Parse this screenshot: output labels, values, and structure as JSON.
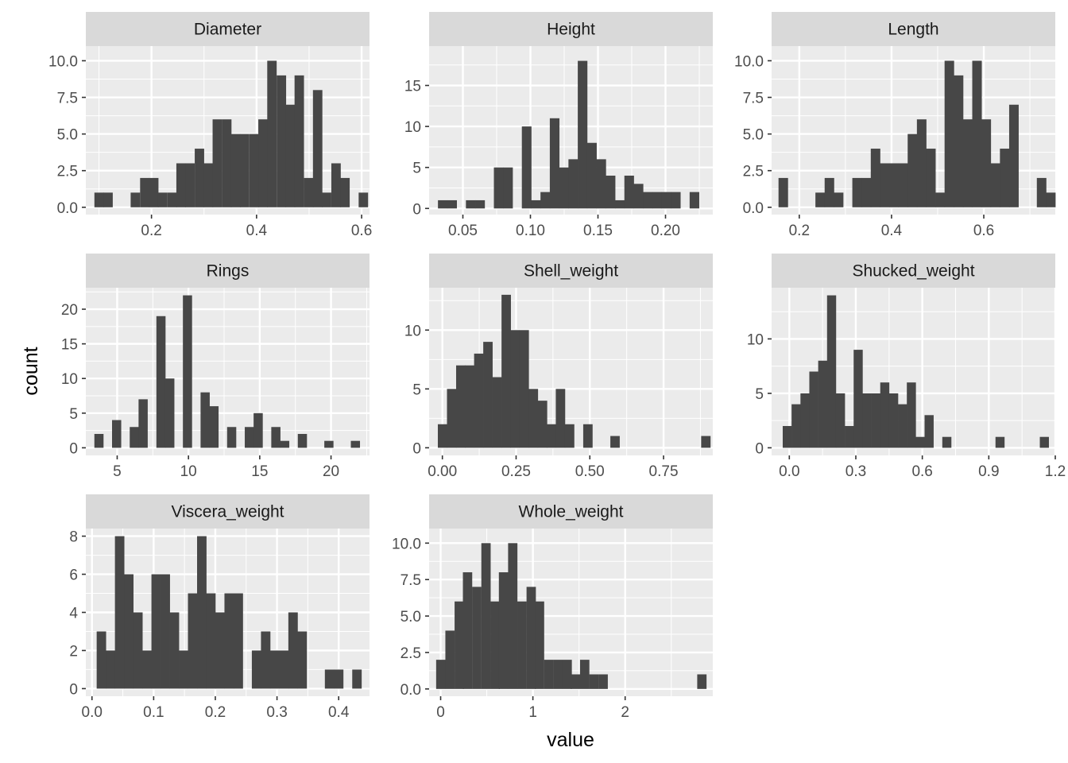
{
  "axes": {
    "x_title": "value",
    "y_title": "count"
  },
  "colors": {
    "panel_background": "#ebebeb",
    "grid_major": "#ffffff",
    "strip_background": "#d9d9d9",
    "bar_fill": "#474747",
    "tick_text": "#4d4d4d"
  },
  "chart_data": [
    {
      "type": "histogram",
      "title": "Diameter",
      "bins": 30,
      "bin_width": 0.01734,
      "xlim": [
        0.075,
        0.615
      ],
      "ylim": [
        -0.5,
        11.0
      ],
      "x_ticks": [
        0.2,
        0.4,
        0.6
      ],
      "x_tick_labels": [
        "0.2",
        "0.4",
        "0.6"
      ],
      "y_ticks": [
        0,
        2.5,
        5,
        7.5,
        10
      ],
      "y_tick_labels": [
        "0.0",
        "2.5",
        "5.0",
        "7.5",
        "10.0"
      ],
      "bin_centers": [
        0.1,
        0.117,
        0.135,
        0.152,
        0.169,
        0.187,
        0.204,
        0.221,
        0.239,
        0.256,
        0.273,
        0.291,
        0.308,
        0.325,
        0.343,
        0.36,
        0.377,
        0.395,
        0.412,
        0.429,
        0.447,
        0.464,
        0.481,
        0.499,
        0.516,
        0.533,
        0.551,
        0.568,
        0.585,
        0.603
      ],
      "counts": [
        1,
        1,
        0,
        0,
        1,
        2,
        2,
        1,
        1,
        3,
        3,
        4,
        3,
        6,
        6,
        5,
        5,
        5,
        6,
        10,
        9,
        7,
        9,
        2,
        8,
        1,
        3,
        2,
        0,
        1
      ]
    },
    {
      "type": "histogram",
      "title": "Height",
      "bins": 30,
      "bin_width": 0.0069,
      "xlim": [
        0.025,
        0.235
      ],
      "ylim": [
        -0.75,
        19.8
      ],
      "x_ticks": [
        0.05,
        0.1,
        0.15,
        0.2
      ],
      "x_tick_labels": [
        "0.05",
        "0.10",
        "0.15",
        "0.20"
      ],
      "y_ticks": [
        0,
        5,
        10,
        15
      ],
      "y_tick_labels": [
        "0",
        "5",
        "10",
        "15"
      ],
      "bin_centers": [
        0.035,
        0.0419,
        0.0488,
        0.0557,
        0.0626,
        0.0695,
        0.0764,
        0.0833,
        0.0902,
        0.0971,
        0.104,
        0.1109,
        0.1178,
        0.1247,
        0.1316,
        0.1385,
        0.1454,
        0.1523,
        0.1592,
        0.1661,
        0.173,
        0.1799,
        0.1868,
        0.1937,
        0.2006,
        0.2075,
        0.2144,
        0.2213,
        0.2282,
        0.2351
      ],
      "counts": [
        1,
        1,
        0,
        1,
        1,
        0,
        5,
        5,
        0,
        10,
        1,
        2,
        11,
        5,
        6,
        18,
        8,
        6,
        4,
        1,
        4,
        3,
        2,
        2,
        2,
        2,
        0,
        2,
        0,
        0
      ]
    },
    {
      "type": "histogram",
      "title": "Length",
      "bins": 30,
      "bin_width": 0.02,
      "xlim": [
        0.14,
        0.755
      ],
      "ylim": [
        -0.5,
        11.0
      ],
      "x_ticks": [
        0.2,
        0.4,
        0.6
      ],
      "x_tick_labels": [
        "0.2",
        "0.4",
        "0.6"
      ],
      "y_ticks": [
        0,
        2.5,
        5,
        7.5,
        10
      ],
      "y_tick_labels": [
        "0.0",
        "2.5",
        "5.0",
        "7.5",
        "10.0"
      ],
      "bin_centers": [
        0.165,
        0.185,
        0.205,
        0.225,
        0.245,
        0.265,
        0.285,
        0.305,
        0.325,
        0.345,
        0.365,
        0.385,
        0.405,
        0.425,
        0.445,
        0.465,
        0.485,
        0.505,
        0.525,
        0.545,
        0.565,
        0.585,
        0.605,
        0.625,
        0.645,
        0.665,
        0.685,
        0.705,
        0.725,
        0.745
      ],
      "counts": [
        2,
        0,
        0,
        0,
        1,
        2,
        1,
        0,
        2,
        2,
        4,
        3,
        3,
        3,
        5,
        6,
        4,
        1,
        10,
        9,
        6,
        10,
        6,
        3,
        4,
        7,
        0,
        0,
        2,
        1
      ]
    },
    {
      "type": "histogram",
      "title": "Rings",
      "bins": 30,
      "bin_width": 0.6207,
      "xlim": [
        2.8,
        22.7
      ],
      "ylim": [
        -1.1,
        23.1
      ],
      "x_ticks": [
        5,
        10,
        15,
        20
      ],
      "x_tick_labels": [
        "5",
        "10",
        "15",
        "20"
      ],
      "y_ticks": [
        0,
        5,
        10,
        15,
        20
      ],
      "y_tick_labels": [
        "0",
        "5",
        "10",
        "15",
        "20"
      ],
      "bin_centers": [
        3.71,
        4.33,
        4.95,
        5.57,
        6.19,
        6.81,
        7.43,
        8.06,
        8.68,
        9.3,
        9.92,
        10.54,
        11.16,
        11.78,
        12.4,
        13.02,
        13.64,
        14.26,
        14.88,
        15.5,
        16.12,
        16.74,
        17.36,
        17.98,
        18.6,
        19.22,
        19.84,
        20.46,
        21.08,
        21.7
      ],
      "counts": [
        2,
        0,
        4,
        0,
        3,
        7,
        0,
        19,
        10,
        0,
        22,
        0,
        8,
        6,
        0,
        3,
        0,
        3,
        5,
        0,
        3,
        1,
        0,
        2,
        0,
        0,
        1,
        0,
        0,
        1
      ]
    },
    {
      "type": "histogram",
      "title": "Shell_weight",
      "bins": 30,
      "bin_width": 0.03079,
      "xlim": [
        -0.045,
        0.917
      ],
      "ylim": [
        -0.65,
        13.6
      ],
      "x_ticks": [
        0.0,
        0.25,
        0.5,
        0.75
      ],
      "x_tick_labels": [
        "0.00",
        "0.25",
        "0.50",
        "0.75"
      ],
      "y_ticks": [
        0,
        5,
        10
      ],
      "y_tick_labels": [
        "0",
        "5",
        "10"
      ],
      "bin_centers": [
        0.0,
        0.031,
        0.062,
        0.092,
        0.123,
        0.154,
        0.185,
        0.216,
        0.246,
        0.277,
        0.308,
        0.339,
        0.369,
        0.4,
        0.431,
        0.462,
        0.493,
        0.523,
        0.554,
        0.585,
        0.616,
        0.646,
        0.677,
        0.708,
        0.739,
        0.77,
        0.8,
        0.831,
        0.862,
        0.893
      ],
      "counts": [
        2,
        5,
        7,
        7,
        8,
        9,
        6,
        13,
        10,
        10,
        5,
        4,
        2,
        5,
        2,
        0,
        2,
        0,
        0,
        1,
        0,
        0,
        0,
        0,
        0,
        0,
        0,
        0,
        0,
        1
      ]
    },
    {
      "type": "histogram",
      "title": "Shucked_weight",
      "bins": 30,
      "bin_width": 0.0396,
      "xlim": [
        -0.08,
        1.2
      ],
      "ylim": [
        -0.7,
        14.7
      ],
      "x_ticks": [
        0.0,
        0.3,
        0.6,
        0.9,
        1.2
      ],
      "x_tick_labels": [
        "0.0",
        "0.3",
        "0.6",
        "0.9",
        "1.2"
      ],
      "y_ticks": [
        0,
        5,
        10
      ],
      "y_tick_labels": [
        "0",
        "5",
        "10"
      ],
      "bin_centers": [
        -0.01,
        0.03,
        0.07,
        0.11,
        0.15,
        0.19,
        0.23,
        0.27,
        0.31,
        0.35,
        0.39,
        0.43,
        0.47,
        0.51,
        0.55,
        0.59,
        0.63,
        0.67,
        0.71,
        0.75,
        0.79,
        0.83,
        0.87,
        0.91,
        0.95,
        0.99,
        1.03,
        1.07,
        1.11,
        1.15
      ],
      "counts": [
        2,
        4,
        5,
        7,
        8,
        14,
        5,
        2,
        9,
        5,
        5,
        6,
        5,
        4,
        6,
        1,
        3,
        0,
        1,
        0,
        0,
        0,
        0,
        0,
        1,
        0,
        0,
        0,
        0,
        1
      ]
    },
    {
      "type": "histogram",
      "title": "Viscera_weight",
      "bins": 30,
      "bin_width": 0.0148,
      "xlim": [
        -0.01,
        0.45
      ],
      "ylim": [
        -0.4,
        8.4
      ],
      "x_ticks": [
        0.0,
        0.1,
        0.2,
        0.3,
        0.4
      ],
      "x_tick_labels": [
        "0.0",
        "0.1",
        "0.2",
        "0.3",
        "0.4"
      ],
      "y_ticks": [
        0,
        2,
        4,
        6,
        8
      ],
      "y_tick_labels": [
        "0",
        "2",
        "4",
        "6",
        "8"
      ],
      "bin_centers": [
        0.015,
        0.0298,
        0.0446,
        0.0594,
        0.0742,
        0.089,
        0.1038,
        0.1186,
        0.1334,
        0.1482,
        0.163,
        0.1778,
        0.1926,
        0.2074,
        0.2222,
        0.237,
        0.2518,
        0.2666,
        0.2814,
        0.2962,
        0.311,
        0.3258,
        0.3406,
        0.3554,
        0.3702,
        0.385,
        0.3998,
        0.4146,
        0.4294,
        0.4442
      ],
      "counts": [
        3,
        2,
        8,
        6,
        4,
        2,
        6,
        6,
        4,
        2,
        5,
        8,
        5,
        4,
        5,
        5,
        0,
        2,
        3,
        2,
        2,
        4,
        3,
        0,
        0,
        1,
        1,
        0,
        1,
        0
      ]
    },
    {
      "type": "histogram",
      "title": "Whole_weight",
      "bins": 30,
      "bin_width": 0.0976,
      "xlim": [
        -0.125,
        2.95
      ],
      "ylim": [
        -0.5,
        11.0
      ],
      "x_ticks": [
        0,
        1,
        2
      ],
      "x_tick_labels": [
        "0",
        "1",
        "2"
      ],
      "y_ticks": [
        0,
        2.5,
        5,
        7.5,
        10
      ],
      "y_tick_labels": [
        "0.0",
        "2.5",
        "5.0",
        "7.5",
        "10.0"
      ],
      "bin_centers": [
        0.0,
        0.1,
        0.2,
        0.29,
        0.39,
        0.49,
        0.59,
        0.68,
        0.78,
        0.88,
        0.98,
        1.07,
        1.17,
        1.27,
        1.37,
        1.46,
        1.56,
        1.66,
        1.76,
        1.85,
        1.95,
        2.05,
        2.15,
        2.25,
        2.34,
        2.44,
        2.54,
        2.64,
        2.73,
        2.83
      ],
      "counts": [
        2,
        4,
        6,
        8,
        7,
        10,
        6,
        8,
        10,
        6,
        7,
        6,
        2,
        2,
        2,
        1,
        2,
        1,
        1,
        0,
        0,
        0,
        0,
        0,
        0,
        0,
        0,
        0,
        0,
        1
      ]
    }
  ]
}
